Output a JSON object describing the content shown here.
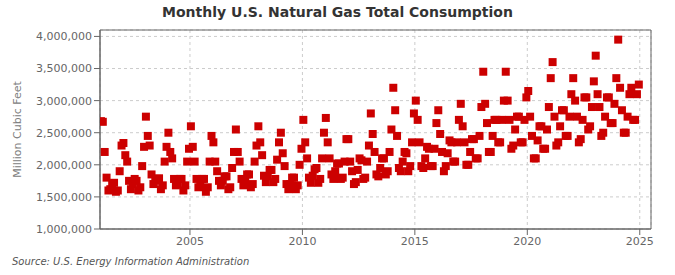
{
  "chart_data": {
    "type": "scatter",
    "title": "Monthly U.S. Natural Gas Total Consumption",
    "ylabel": "Million Cubic Feet",
    "annotations": [
      "Source: U.S. Energy Information Administration"
    ],
    "color": "#CC0000",
    "marker": "square",
    "grid": true,
    "xlim": [
      2001.0,
      2025.5
    ],
    "xticks": [
      2005,
      2010,
      2015,
      2020,
      2025
    ],
    "ylim": [
      1000000,
      4100000
    ],
    "yticks": [
      {
        "value": 1000000,
        "label": "1,000,000"
      },
      {
        "value": 1500000,
        "label": "1,500,000"
      },
      {
        "value": 2000000,
        "label": "2,000,000"
      },
      {
        "value": 2500000,
        "label": "2,500,000"
      },
      {
        "value": 3000000,
        "label": "3,000,000"
      },
      {
        "value": 3500000,
        "label": "3,500,000"
      },
      {
        "value": 4000000,
        "label": "4,000,000"
      }
    ],
    "x": [
      2001.0416666666667,
      2001.125,
      2001.2083333333333,
      2001.2916666666667,
      2001.375,
      2001.4583333333333,
      2001.5416666666667,
      2001.625,
      2001.7083333333333,
      2001.7916666666667,
      2001.875,
      2001.9583333333333,
      2002.0416666666667,
      2002.125,
      2002.2083333333333,
      2002.2916666666667,
      2002.375,
      2002.4583333333333,
      2002.5416666666667,
      2002.625,
      2002.7083333333333,
      2002.7916666666667,
      2002.875,
      2002.9583333333333,
      2003.0416666666667,
      2003.125,
      2003.2083333333333,
      2003.2916666666667,
      2003.375,
      2003.4583333333333,
      2003.5416666666667,
      2003.625,
      2003.7083333333333,
      2003.7916666666667,
      2003.875,
      2003.9583333333333,
      2004.0416666666667,
      2004.125,
      2004.2083333333333,
      2004.2916666666667,
      2004.375,
      2004.4583333333333,
      2004.5416666666667,
      2004.625,
      2004.7083333333333,
      2004.7916666666667,
      2004.875,
      2004.9583333333333,
      2005.0416666666667,
      2005.125,
      2005.2083333333333,
      2005.2916666666667,
      2005.375,
      2005.4583333333333,
      2005.5416666666667,
      2005.625,
      2005.7083333333333,
      2005.7916666666667,
      2005.875,
      2005.9583333333333,
      2006.0416666666667,
      2006.125,
      2006.2083333333333,
      2006.2916666666667,
      2006.375,
      2006.4583333333333,
      2006.5416666666667,
      2006.625,
      2006.7083333333333,
      2006.7916666666667,
      2006.875,
      2006.9583333333333,
      2007.0416666666667,
      2007.125,
      2007.2083333333333,
      2007.2916666666667,
      2007.375,
      2007.4583333333333,
      2007.5416666666667,
      2007.625,
      2007.7083333333333,
      2007.7916666666667,
      2007.875,
      2007.9583333333333,
      2008.0416666666667,
      2008.125,
      2008.2083333333333,
      2008.2916666666667,
      2008.375,
      2008.4583333333333,
      2008.5416666666667,
      2008.625,
      2008.7083333333333,
      2008.7916666666667,
      2008.875,
      2008.9583333333333,
      2009.0416666666667,
      2009.125,
      2009.2083333333333,
      2009.2916666666667,
      2009.375,
      2009.4583333333333,
      2009.5416666666667,
      2009.625,
      2009.7083333333333,
      2009.7916666666667,
      2009.875,
      2009.9583333333333,
      2010.0416666666667,
      2010.125,
      2010.2083333333333,
      2010.2916666666667,
      2010.375,
      2010.4583333333333,
      2010.5416666666667,
      2010.625,
      2010.7083333333333,
      2010.7916666666667,
      2010.875,
      2010.9583333333333,
      2011.0416666666667,
      2011.125,
      2011.2083333333333,
      2011.2916666666667,
      2011.375,
      2011.4583333333333,
      2011.5416666666667,
      2011.625,
      2011.7083333333333,
      2011.7916666666667,
      2011.875,
      2011.9583333333333,
      2012.0416666666667,
      2012.125,
      2012.2083333333333,
      2012.2916666666667,
      2012.375,
      2012.4583333333333,
      2012.5416666666667,
      2012.625,
      2012.7083333333333,
      2012.7916666666667,
      2012.875,
      2012.9583333333333,
      2013.0416666666667,
      2013.125,
      2013.2083333333333,
      2013.2916666666667,
      2013.375,
      2013.4583333333333,
      2013.5416666666667,
      2013.625,
      2013.7083333333333,
      2013.7916666666667,
      2013.875,
      2013.9583333333333,
      2014.0416666666667,
      2014.125,
      2014.2083333333333,
      2014.2916666666667,
      2014.375,
      2014.4583333333333,
      2014.5416666666667,
      2014.625,
      2014.7083333333333,
      2014.7916666666667,
      2014.875,
      2014.9583333333333,
      2015.0416666666667,
      2015.125,
      2015.2083333333333,
      2015.2916666666667,
      2015.375,
      2015.4583333333333,
      2015.5416666666667,
      2015.625,
      2015.7083333333333,
      2015.7916666666667,
      2015.875,
      2015.9583333333333,
      2016.0416666666667,
      2016.125,
      2016.2083333333333,
      2016.2916666666667,
      2016.375,
      2016.4583333333333,
      2016.5416666666667,
      2016.625,
      2016.7083333333333,
      2016.7916666666667,
      2016.875,
      2016.9583333333333,
      2017.0416666666667,
      2017.125,
      2017.2083333333333,
      2017.2916666666667,
      2017.375,
      2017.4583333333333,
      2017.5416666666667,
      2017.625,
      2017.7083333333333,
      2017.7916666666667,
      2017.875,
      2017.9583333333333,
      2018.0416666666667,
      2018.125,
      2018.2083333333333,
      2018.2916666666667,
      2018.375,
      2018.4583333333333,
      2018.5416666666667,
      2018.625,
      2018.7083333333333,
      2018.7916666666667,
      2018.875,
      2018.9583333333333,
      2019.0416666666667,
      2019.125,
      2019.2083333333333,
      2019.2916666666667,
      2019.375,
      2019.4583333333333,
      2019.5416666666667,
      2019.625,
      2019.7083333333333,
      2019.7916666666667,
      2019.875,
      2019.9583333333333,
      2020.0416666666667,
      2020.125,
      2020.2083333333333,
      2020.2916666666667,
      2020.375,
      2020.4583333333333,
      2020.5416666666667,
      2020.625,
      2020.7083333333333,
      2020.7916666666667,
      2020.875,
      2020.9583333333333,
      2021.0416666666667,
      2021.125,
      2021.2083333333333,
      2021.2916666666667,
      2021.375,
      2021.4583333333333,
      2021.5416666666667,
      2021.625,
      2021.7083333333333,
      2021.7916666666667,
      2021.875,
      2021.9583333333333,
      2022.0416666666667,
      2022.125,
      2022.2083333333333,
      2022.2916666666667,
      2022.375,
      2022.4583333333333,
      2022.5416666666667,
      2022.625,
      2022.7083333333333,
      2022.7916666666667,
      2022.875,
      2022.9583333333333,
      2023.0416666666667,
      2023.125,
      2023.2083333333333,
      2023.2916666666667,
      2023.375,
      2023.4583333333333,
      2023.5416666666667,
      2023.625,
      2023.7083333333333,
      2023.7916666666667,
      2023.875,
      2023.9583333333333,
      2024.0416666666667,
      2024.125,
      2024.2083333333333,
      2024.2916666666667,
      2024.375,
      2024.4583333333333,
      2024.5416666666667,
      2024.625,
      2024.7083333333333,
      2024.7916666666667,
      2024.875,
      2024.9583333333333
    ],
    "values": [
      2680000,
      2670000,
      2200000,
      1800000,
      1600000,
      1620000,
      1700000,
      1720000,
      1580000,
      1600000,
      1900000,
      2300000,
      2340000,
      2150000,
      2050000,
      1750000,
      1620000,
      1700000,
      1780000,
      1750000,
      1600000,
      1650000,
      1980000,
      2280000,
      2750000,
      2450000,
      2300000,
      1850000,
      1700000,
      1750000,
      1780000,
      1790000,
      1620000,
      1680000,
      2050000,
      2280000,
      2500000,
      2200000,
      2100000,
      1780000,
      1680000,
      1700000,
      1780000,
      1780000,
      1600000,
      1680000,
      2050000,
      2250000,
      2600000,
      2280000,
      2050000,
      1780000,
      1650000,
      1700000,
      1780000,
      1780000,
      1580000,
      1650000,
      2050000,
      2450000,
      2350000,
      2050000,
      1900000,
      1750000,
      1680000,
      1750000,
      1820000,
      1820000,
      1620000,
      1650000,
      1950000,
      2200000,
      2550000,
      2200000,
      2050000,
      1780000,
      1680000,
      1750000,
      1850000,
      1850000,
      1650000,
      1700000,
      2050000,
      2300000,
      2600000,
      2350000,
      2150000,
      1830000,
      1730000,
      1820000,
      1920000,
      1920000,
      1730000,
      1780000,
      2080000,
      2350000,
      2500000,
      2180000,
      1980000,
      1700000,
      1620000,
      1700000,
      1800000,
      1800000,
      1620000,
      1680000,
      2000000,
      2250000,
      2700000,
      2350000,
      2100000,
      1800000,
      1720000,
      1830000,
      1930000,
      1950000,
      1720000,
      1780000,
      2100000,
      2500000,
      2730000,
      2350000,
      2100000,
      1850000,
      1780000,
      1900000,
      2020000,
      2020000,
      1780000,
      1800000,
      2050000,
      2400000,
      2400000,
      2050000,
      1900000,
      1700000,
      1730000,
      1920000,
      2100000,
      2070000,
      1780000,
      1800000,
      2050000,
      2300000,
      2800000,
      2480000,
      2200000,
      1850000,
      1820000,
      1950000,
      2100000,
      2100000,
      1850000,
      1900000,
      2200000,
      2550000,
      3200000,
      2850000,
      2450000,
      1950000,
      1900000,
      2050000,
      2200000,
      2180000,
      1900000,
      1980000,
      2350000,
      2800000,
      3000000,
      2700000,
      2350000,
      1980000,
      1950000,
      2100000,
      2280000,
      2250000,
      1980000,
      1980000,
      2250000,
      2650000,
      2850000,
      2480000,
      2200000,
      1900000,
      1980000,
      2180000,
      2380000,
      2350000,
      2050000,
      2050000,
      2350000,
      2700000,
      2950000,
      2600000,
      2350000,
      2000000,
      2000000,
      2200000,
      2400000,
      2400000,
      2100000,
      2100000,
      2450000,
      2900000,
      3450000,
      2950000,
      2650000,
      2200000,
      2200000,
      2450000,
      2700000,
      2700000,
      2350000,
      2350000,
      2700000,
      3000000,
      3450000,
      3000000,
      2700000,
      2250000,
      2300000,
      2550000,
      2750000,
      2750000,
      2350000,
      2350000,
      2700000,
      3050000,
      3150000,
      2750000,
      2450000,
      2100000,
      2100000,
      2380000,
      2600000,
      2600000,
      2250000,
      2250000,
      2550000,
      2900000,
      3350000,
      3600000,
      2750000,
      2300000,
      2350000,
      2600000,
      2850000,
      2850000,
      2450000,
      2450000,
      2750000,
      3100000,
      3350000,
      3000000,
      2750000,
      2350000,
      2400000,
      2700000,
      3050000,
      3050000,
      2550000,
      2600000,
      2900000,
      3300000,
      3700000,
      3100000,
      2900000,
      2450000,
      2500000,
      2750000,
      3050000,
      3050000,
      2650000,
      2650000,
      2950000,
      3350000,
      3950000,
      3200000,
      2850000,
      2500000,
      2500000,
      2750000,
      3100000,
      3200000,
      2700000,
      2700000,
      3100000,
      3250000
    ]
  }
}
